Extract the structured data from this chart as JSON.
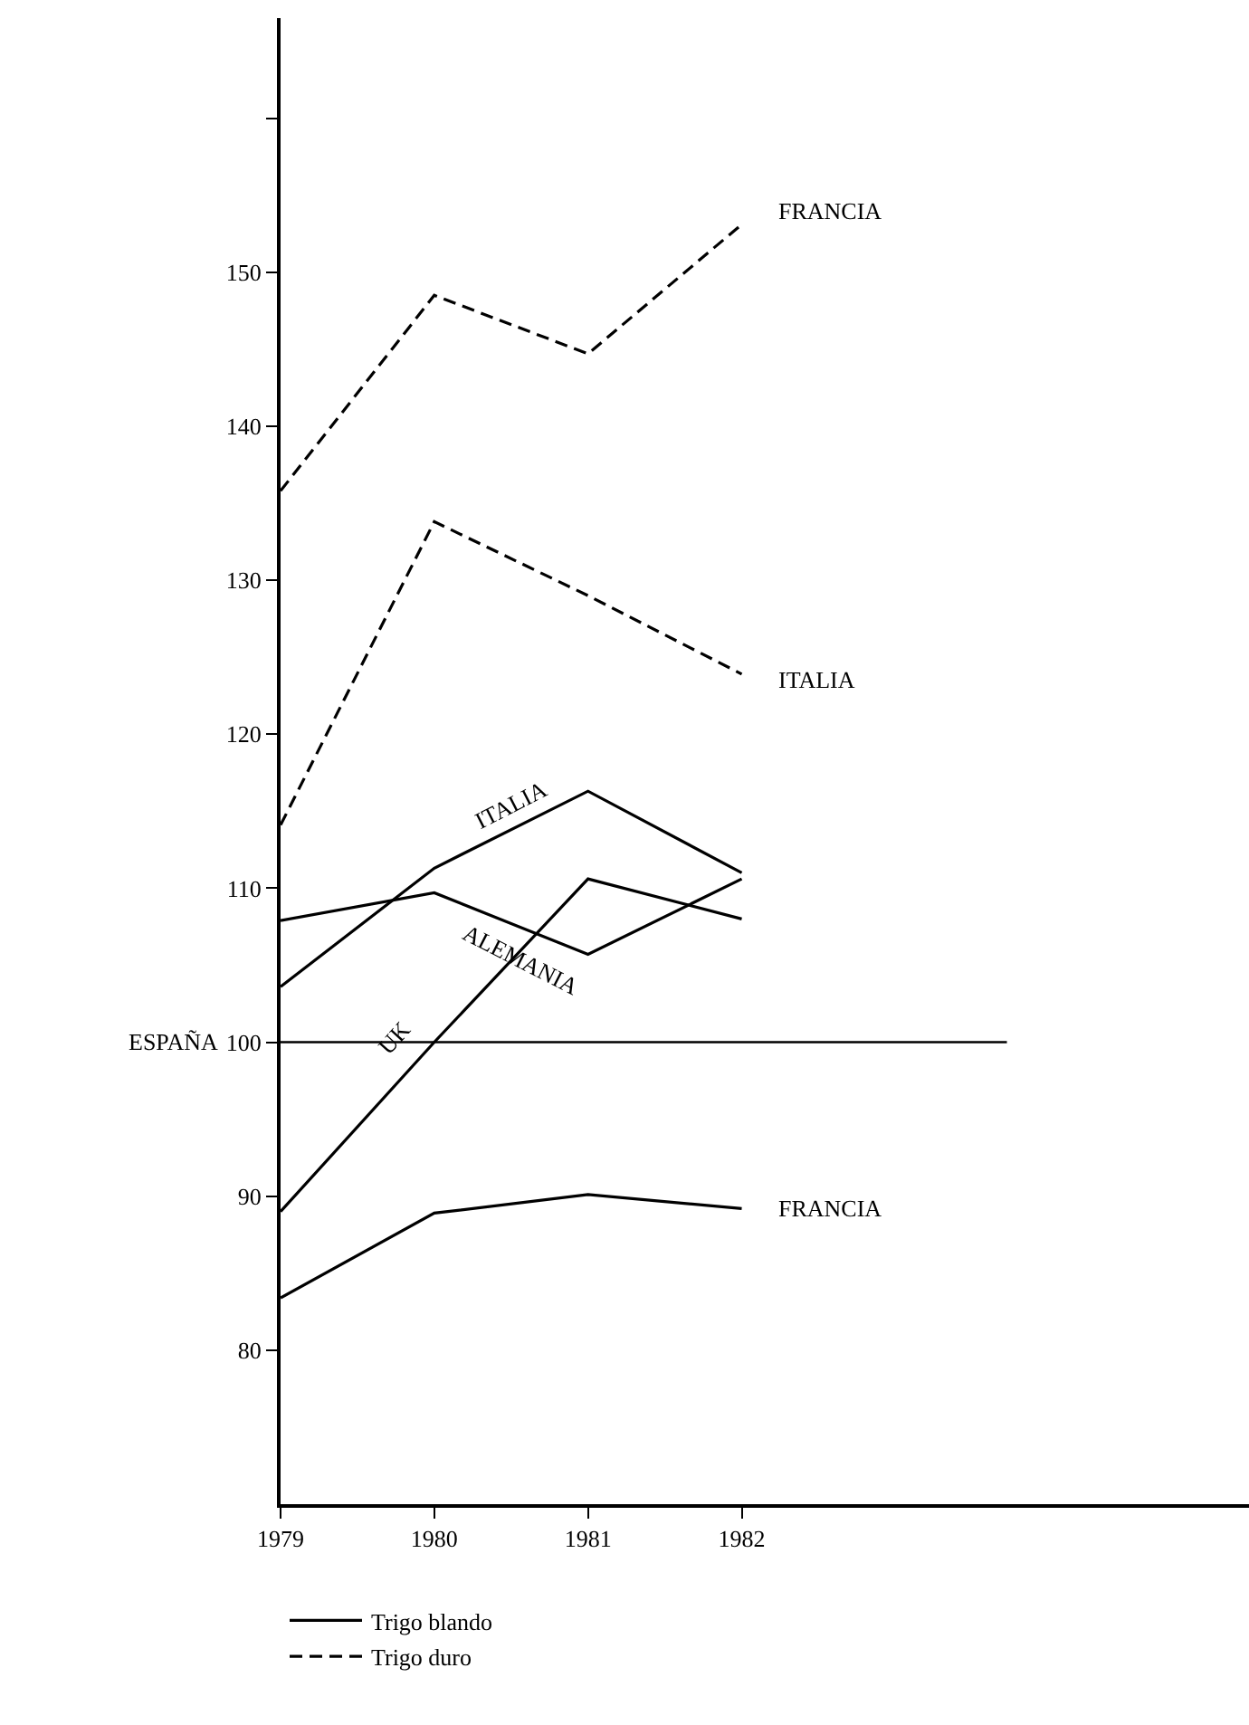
{
  "chart_data": {
    "type": "line",
    "x": [
      1979,
      1980,
      1981,
      1982
    ],
    "series": [
      {
        "name": "Trigo blando",
        "color": "#000000",
        "line_style": "solid",
        "values": [
          83.4,
          88.9,
          90.1,
          89.2
        ]
      },
      {
        "color": "#000000",
        "line_style": "solid",
        "values": [
          103.6,
          111.3,
          116.3,
          111.0
        ]
      },
      {
        "color": "#000000",
        "line_style": "solid",
        "values": [
          107.9,
          109.7,
          105.7,
          110.6
        ]
      },
      {
        "color": "#000000",
        "line_style": "solid",
        "values": [
          89.0,
          100.0,
          110.6,
          108.0
        ]
      },
      {
        "name": "Trigo duro",
        "color": "#000000",
        "line_style": "dashed",
        "values": [
          135.8,
          148.5,
          144.7,
          153.1
        ]
      },
      {
        "color": "#000000",
        "line_style": "dashed",
        "values": [
          114.1,
          133.8,
          129.0,
          123.9
        ]
      }
    ],
    "xlim": [
      1979,
      1985.3
    ],
    "xticks": [
      1979,
      1980,
      1981,
      1982
    ],
    "ylim": [
      70,
      166.5
    ],
    "yticks": [
      80,
      90,
      100,
      110,
      120,
      130,
      140,
      150,
      {
        "value": 160,
        "label": null
      }
    ],
    "ref_lines": [
      {
        "axis": "y",
        "value": 100,
        "label": "ESPAÑA",
        "color": "#000000"
      }
    ],
    "annotations": [
      {
        "text": "FRANCIA",
        "x": 1982,
        "y": 153.1
      },
      {
        "text": "ITALIA",
        "x": 1982,
        "y": 123.9
      },
      {
        "text": "ITALIA",
        "x": 1980.5,
        "y": 113.8
      },
      {
        "text": "ALEMANIA",
        "x": 1980.5,
        "y": 107.7
      },
      {
        "text": "UK",
        "x": 1979.9,
        "y": 98.9
      },
      {
        "text": "FRANCIA",
        "x": 1982,
        "y": 89.2
      }
    ],
    "legend": "bottom left",
    "marker": "none"
  }
}
